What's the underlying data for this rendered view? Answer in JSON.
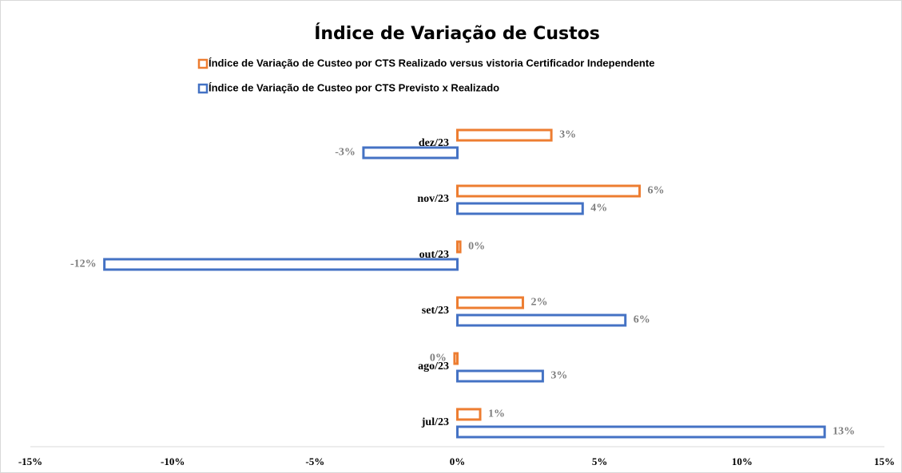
{
  "chart_data": {
    "type": "hbar",
    "title": "Índice de Variação de Custos",
    "categories": [
      "jul/23",
      "ago/23",
      "set/23",
      "out/23",
      "nov/23",
      "dez/23"
    ],
    "series": [
      {
        "name": "Índice de Variação de Custeo por CTS Realizado versus vistoria Certificador Independente",
        "color": "#ed7d31",
        "values": [
          0.8,
          -0.1,
          2.3,
          0.1,
          6.4,
          3.3
        ],
        "value_labels": [
          "1%",
          "0%",
          "2%",
          "0%",
          "6%",
          "3%"
        ]
      },
      {
        "name": "Índice de Variação de Custeo por CTS Previsto x Realizado",
        "color": "#4472c4",
        "values": [
          12.9,
          3.0,
          5.9,
          -12.4,
          4.4,
          -3.3
        ],
        "value_labels": [
          "13%",
          "3%",
          "6%",
          "-12%",
          "4%",
          "-3%"
        ]
      }
    ],
    "xlim": [
      -15,
      15
    ],
    "xticks": [
      {
        "value": -15,
        "label": "-15%"
      },
      {
        "value": -10,
        "label": "-10%"
      },
      {
        "value": -5,
        "label": "-5%"
      },
      {
        "value": 0,
        "label": "0%"
      },
      {
        "value": 5,
        "label": "5%"
      },
      {
        "value": 10,
        "label": "10%"
      },
      {
        "value": 15,
        "label": "15%"
      }
    ],
    "grid": false
  }
}
